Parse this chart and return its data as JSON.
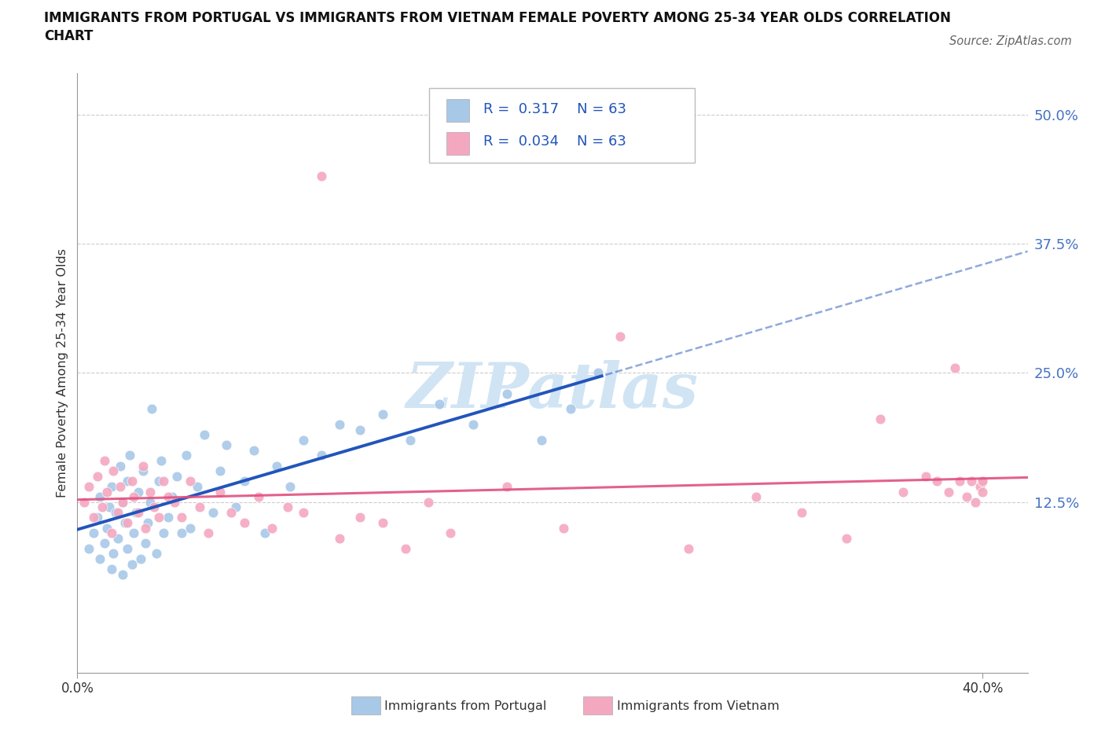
{
  "title_line1": "IMMIGRANTS FROM PORTUGAL VS IMMIGRANTS FROM VIETNAM FEMALE POVERTY AMONG 25-34 YEAR OLDS CORRELATION",
  "title_line2": "CHART",
  "source": "Source: ZipAtlas.com",
  "ylabel": "Female Poverty Among 25-34 Year Olds",
  "xlim": [
    0.0,
    0.42
  ],
  "ylim": [
    -0.04,
    0.54
  ],
  "ytick_values": [
    0.125,
    0.25,
    0.375,
    0.5
  ],
  "ytick_labels": [
    "12.5%",
    "25.0%",
    "37.5%",
    "50.0%"
  ],
  "xtick_values": [
    0.0,
    0.4
  ],
  "xtick_labels": [
    "0.0%",
    "40.0%"
  ],
  "r_portugal": 0.317,
  "n_portugal": 63,
  "r_vietnam": 0.034,
  "n_vietnam": 63,
  "color_portugal": "#a8c8e8",
  "color_vietnam": "#f4a8c0",
  "line_color_portugal": "#2255bb",
  "line_color_vietnam": "#e05080",
  "watermark": "ZIPatlas",
  "watermark_color": "#d0e4f4",
  "portugal_x": [
    0.005,
    0.007,
    0.009,
    0.01,
    0.01,
    0.012,
    0.013,
    0.014,
    0.015,
    0.015,
    0.016,
    0.017,
    0.018,
    0.019,
    0.02,
    0.02,
    0.021,
    0.022,
    0.022,
    0.023,
    0.024,
    0.025,
    0.026,
    0.027,
    0.028,
    0.029,
    0.03,
    0.031,
    0.032,
    0.033,
    0.035,
    0.036,
    0.037,
    0.038,
    0.04,
    0.042,
    0.044,
    0.046,
    0.048,
    0.05,
    0.053,
    0.056,
    0.06,
    0.063,
    0.066,
    0.07,
    0.074,
    0.078,
    0.083,
    0.088,
    0.094,
    0.1,
    0.108,
    0.116,
    0.125,
    0.135,
    0.147,
    0.16,
    0.175,
    0.19,
    0.205,
    0.218,
    0.23
  ],
  "portugal_y": [
    0.08,
    0.095,
    0.11,
    0.07,
    0.13,
    0.085,
    0.1,
    0.12,
    0.06,
    0.14,
    0.075,
    0.115,
    0.09,
    0.16,
    0.055,
    0.125,
    0.105,
    0.08,
    0.145,
    0.17,
    0.065,
    0.095,
    0.115,
    0.135,
    0.07,
    0.155,
    0.085,
    0.105,
    0.125,
    0.215,
    0.075,
    0.145,
    0.165,
    0.095,
    0.11,
    0.13,
    0.15,
    0.095,
    0.17,
    0.1,
    0.14,
    0.19,
    0.115,
    0.155,
    0.18,
    0.12,
    0.145,
    0.175,
    0.095,
    0.16,
    0.14,
    0.185,
    0.17,
    0.2,
    0.195,
    0.21,
    0.185,
    0.22,
    0.2,
    0.23,
    0.185,
    0.215,
    0.25
  ],
  "vietnam_x": [
    0.003,
    0.005,
    0.007,
    0.009,
    0.011,
    0.012,
    0.013,
    0.015,
    0.016,
    0.018,
    0.019,
    0.02,
    0.022,
    0.024,
    0.025,
    0.027,
    0.029,
    0.03,
    0.032,
    0.034,
    0.036,
    0.038,
    0.04,
    0.043,
    0.046,
    0.05,
    0.054,
    0.058,
    0.063,
    0.068,
    0.074,
    0.08,
    0.086,
    0.093,
    0.1,
    0.108,
    0.116,
    0.125,
    0.135,
    0.145,
    0.155,
    0.165,
    0.19,
    0.215,
    0.24,
    0.27,
    0.3,
    0.32,
    0.34,
    0.355,
    0.365,
    0.375,
    0.38,
    0.385,
    0.388,
    0.39,
    0.393,
    0.395,
    0.397,
    0.399,
    0.4,
    0.4,
    0.4
  ],
  "vietnam_y": [
    0.125,
    0.14,
    0.11,
    0.15,
    0.12,
    0.165,
    0.135,
    0.095,
    0.155,
    0.115,
    0.14,
    0.125,
    0.105,
    0.145,
    0.13,
    0.115,
    0.16,
    0.1,
    0.135,
    0.12,
    0.11,
    0.145,
    0.13,
    0.125,
    0.11,
    0.145,
    0.12,
    0.095,
    0.135,
    0.115,
    0.105,
    0.13,
    0.1,
    0.12,
    0.115,
    0.44,
    0.09,
    0.11,
    0.105,
    0.08,
    0.125,
    0.095,
    0.14,
    0.1,
    0.285,
    0.08,
    0.13,
    0.115,
    0.09,
    0.205,
    0.135,
    0.15,
    0.145,
    0.135,
    0.255,
    0.145,
    0.13,
    0.145,
    0.125,
    0.14,
    0.145,
    0.135,
    0.145
  ]
}
